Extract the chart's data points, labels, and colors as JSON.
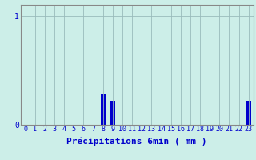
{
  "xlabel": "Précipitations 6min ( mm )",
  "background_color": "#cceee8",
  "bar_color": "#0000cc",
  "grid_color": "#99bbbb",
  "spine_color": "#888888",
  "text_color": "#0000cc",
  "xlim": [
    -0.5,
    23.5
  ],
  "ylim": [
    0,
    1.1
  ],
  "yticks": [
    0,
    1
  ],
  "xticks": [
    0,
    1,
    2,
    3,
    4,
    5,
    6,
    7,
    8,
    9,
    10,
    11,
    12,
    13,
    14,
    15,
    16,
    17,
    18,
    19,
    20,
    21,
    22,
    23
  ],
  "values": [
    0,
    0,
    0,
    0,
    0,
    0,
    0,
    0,
    0.28,
    0.22,
    0,
    0,
    0,
    0,
    0,
    0,
    0,
    0,
    0,
    0,
    0,
    0,
    0,
    0.22
  ],
  "hours": [
    0,
    1,
    2,
    3,
    4,
    5,
    6,
    7,
    8,
    9,
    10,
    11,
    12,
    13,
    14,
    15,
    16,
    17,
    18,
    19,
    20,
    21,
    22,
    23
  ],
  "bar_width": 0.5,
  "xlabel_fontsize": 8,
  "tick_fontsize": 6,
  "ytick_fontsize": 7
}
